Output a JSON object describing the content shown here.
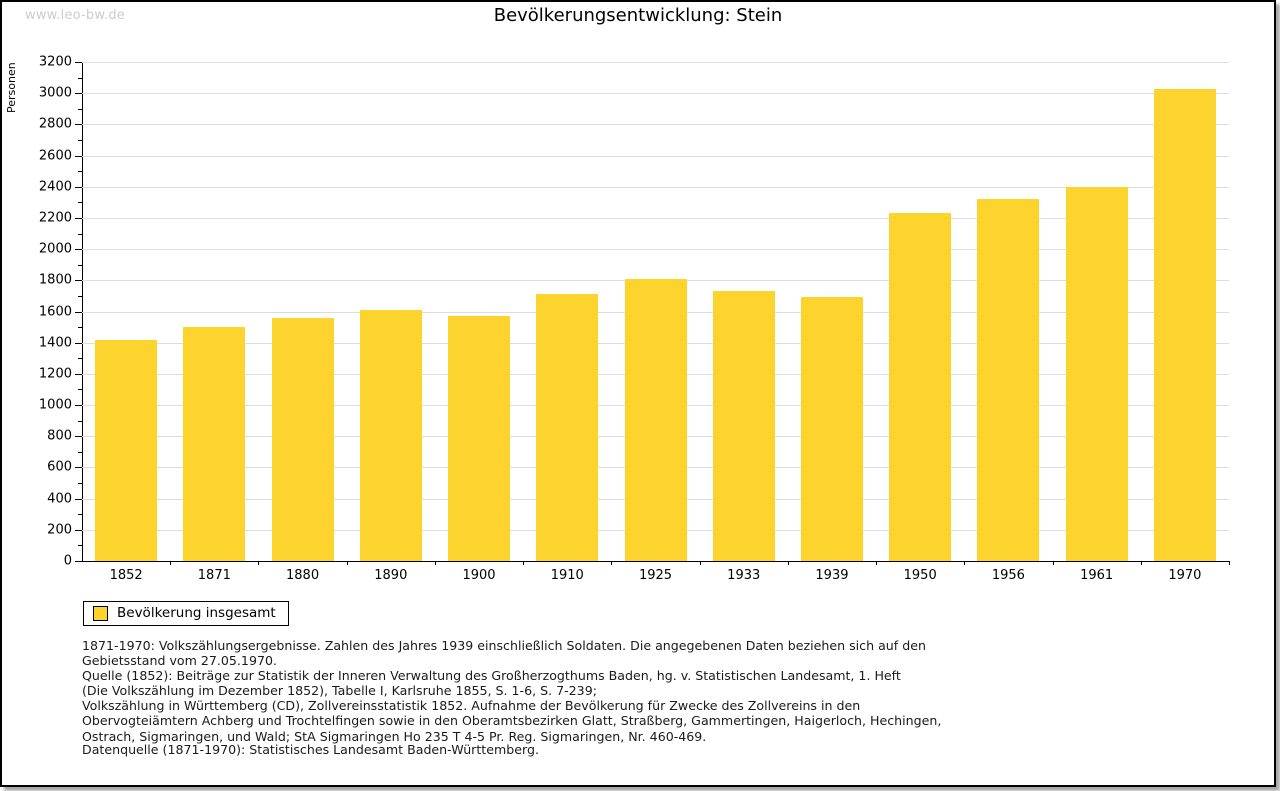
{
  "page": {
    "watermark": "www.leo-bw.de"
  },
  "chart_data": {
    "type": "bar",
    "title": "Bevölkerungsentwicklung: Stein",
    "xlabel": "",
    "ylabel": "Personen",
    "categories": [
      "1852",
      "1871",
      "1880",
      "1890",
      "1900",
      "1910",
      "1925",
      "1933",
      "1939",
      "1950",
      "1956",
      "1961",
      "1970"
    ],
    "values": [
      1420,
      1500,
      1560,
      1610,
      1570,
      1710,
      1810,
      1730,
      1690,
      2230,
      2320,
      2400,
      3030
    ],
    "ylim": [
      0,
      3200
    ],
    "ytick_step": 200,
    "ytick_minor_step": 100,
    "grid": true,
    "legend_position": "bottom-left",
    "bar_color": "#FDD32D",
    "grid_color": "#dddddd",
    "axis_color": "#000000"
  },
  "legend": {
    "label": "Bevölkerung insgesamt"
  },
  "footnotes": {
    "lines": [
      "1871-1970: Volkszählungsergebnisse. Zahlen des Jahres 1939 einschließlich Soldaten. Die angegebenen Daten beziehen sich auf den",
      "Gebietsstand vom 27.05.1970.",
      "Quelle (1852): Beiträge zur Statistik der Inneren Verwaltung des Großherzogthums Baden, hg. v. Statistischen Landesamt, 1. Heft",
      "(Die Volkszählung im Dezember 1852), Tabelle I, Karlsruhe 1855, S. 1-6, S. 7-239;",
      "Volkszählung in Württemberg (CD), Zollvereinsstatistik 1852. Aufnahme der Bevölkerung für Zwecke des Zollvereins in den",
      "Obervogteiämtern Achberg und Trochtelfingen sowie in den Oberamtsbezirken Glatt, Straßberg, Gammertingen, Haigerloch, Hechingen,",
      "Ostrach, Sigmaringen, und Wald; StA Sigmaringen Ho 235 T 4-5 Pr. Reg. Sigmaringen, Nr. 460-469."
    ],
    "datasource": "Datenquelle (1871-1970): Statistisches Landesamt Baden-Württemberg."
  }
}
